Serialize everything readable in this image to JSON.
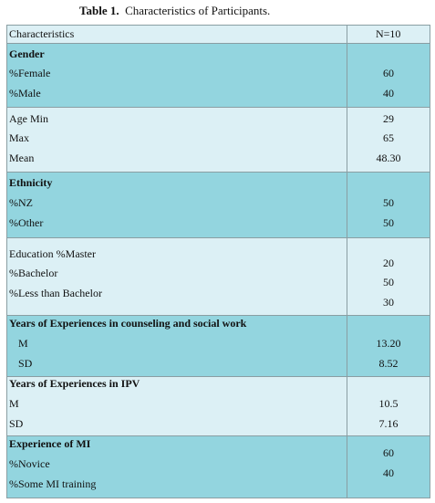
{
  "title": {
    "label": "Table 1.",
    "caption": "Characteristics of Participants."
  },
  "table": {
    "header": [
      "Characteristics",
      "N=10"
    ],
    "sections": [
      {
        "heading": "Gender",
        "labels": [
          "%Female",
          "%Male"
        ],
        "values": [
          "60",
          "40"
        ]
      },
      {
        "labels": [
          "Age Min",
          "Max",
          "Mean"
        ],
        "values": [
          "29",
          "65",
          "48.30"
        ]
      },
      {
        "heading": "Ethnicity",
        "labels": [
          "%NZ",
          "%Other"
        ],
        "values": [
          "50",
          "50"
        ]
      },
      {
        "labels": [
          "Education %Master",
          "%Bachelor",
          "%Less than Bachelor"
        ],
        "values": [
          "20",
          "50",
          "30"
        ]
      },
      {
        "heading": "Years of Experiences in counseling and social work",
        "labels": [
          "M",
          "SD"
        ],
        "values": [
          "13.20",
          "8.52"
        ]
      },
      {
        "heading": "Years of Experiences in IPV",
        "labels": [
          "M",
          "SD"
        ],
        "values": [
          "10.5",
          "7.16"
        ]
      },
      {
        "heading": "Experience of MI",
        "labels": [
          "%Novice",
          "%Some MI training"
        ],
        "values": [
          "60",
          "40"
        ]
      }
    ]
  }
}
